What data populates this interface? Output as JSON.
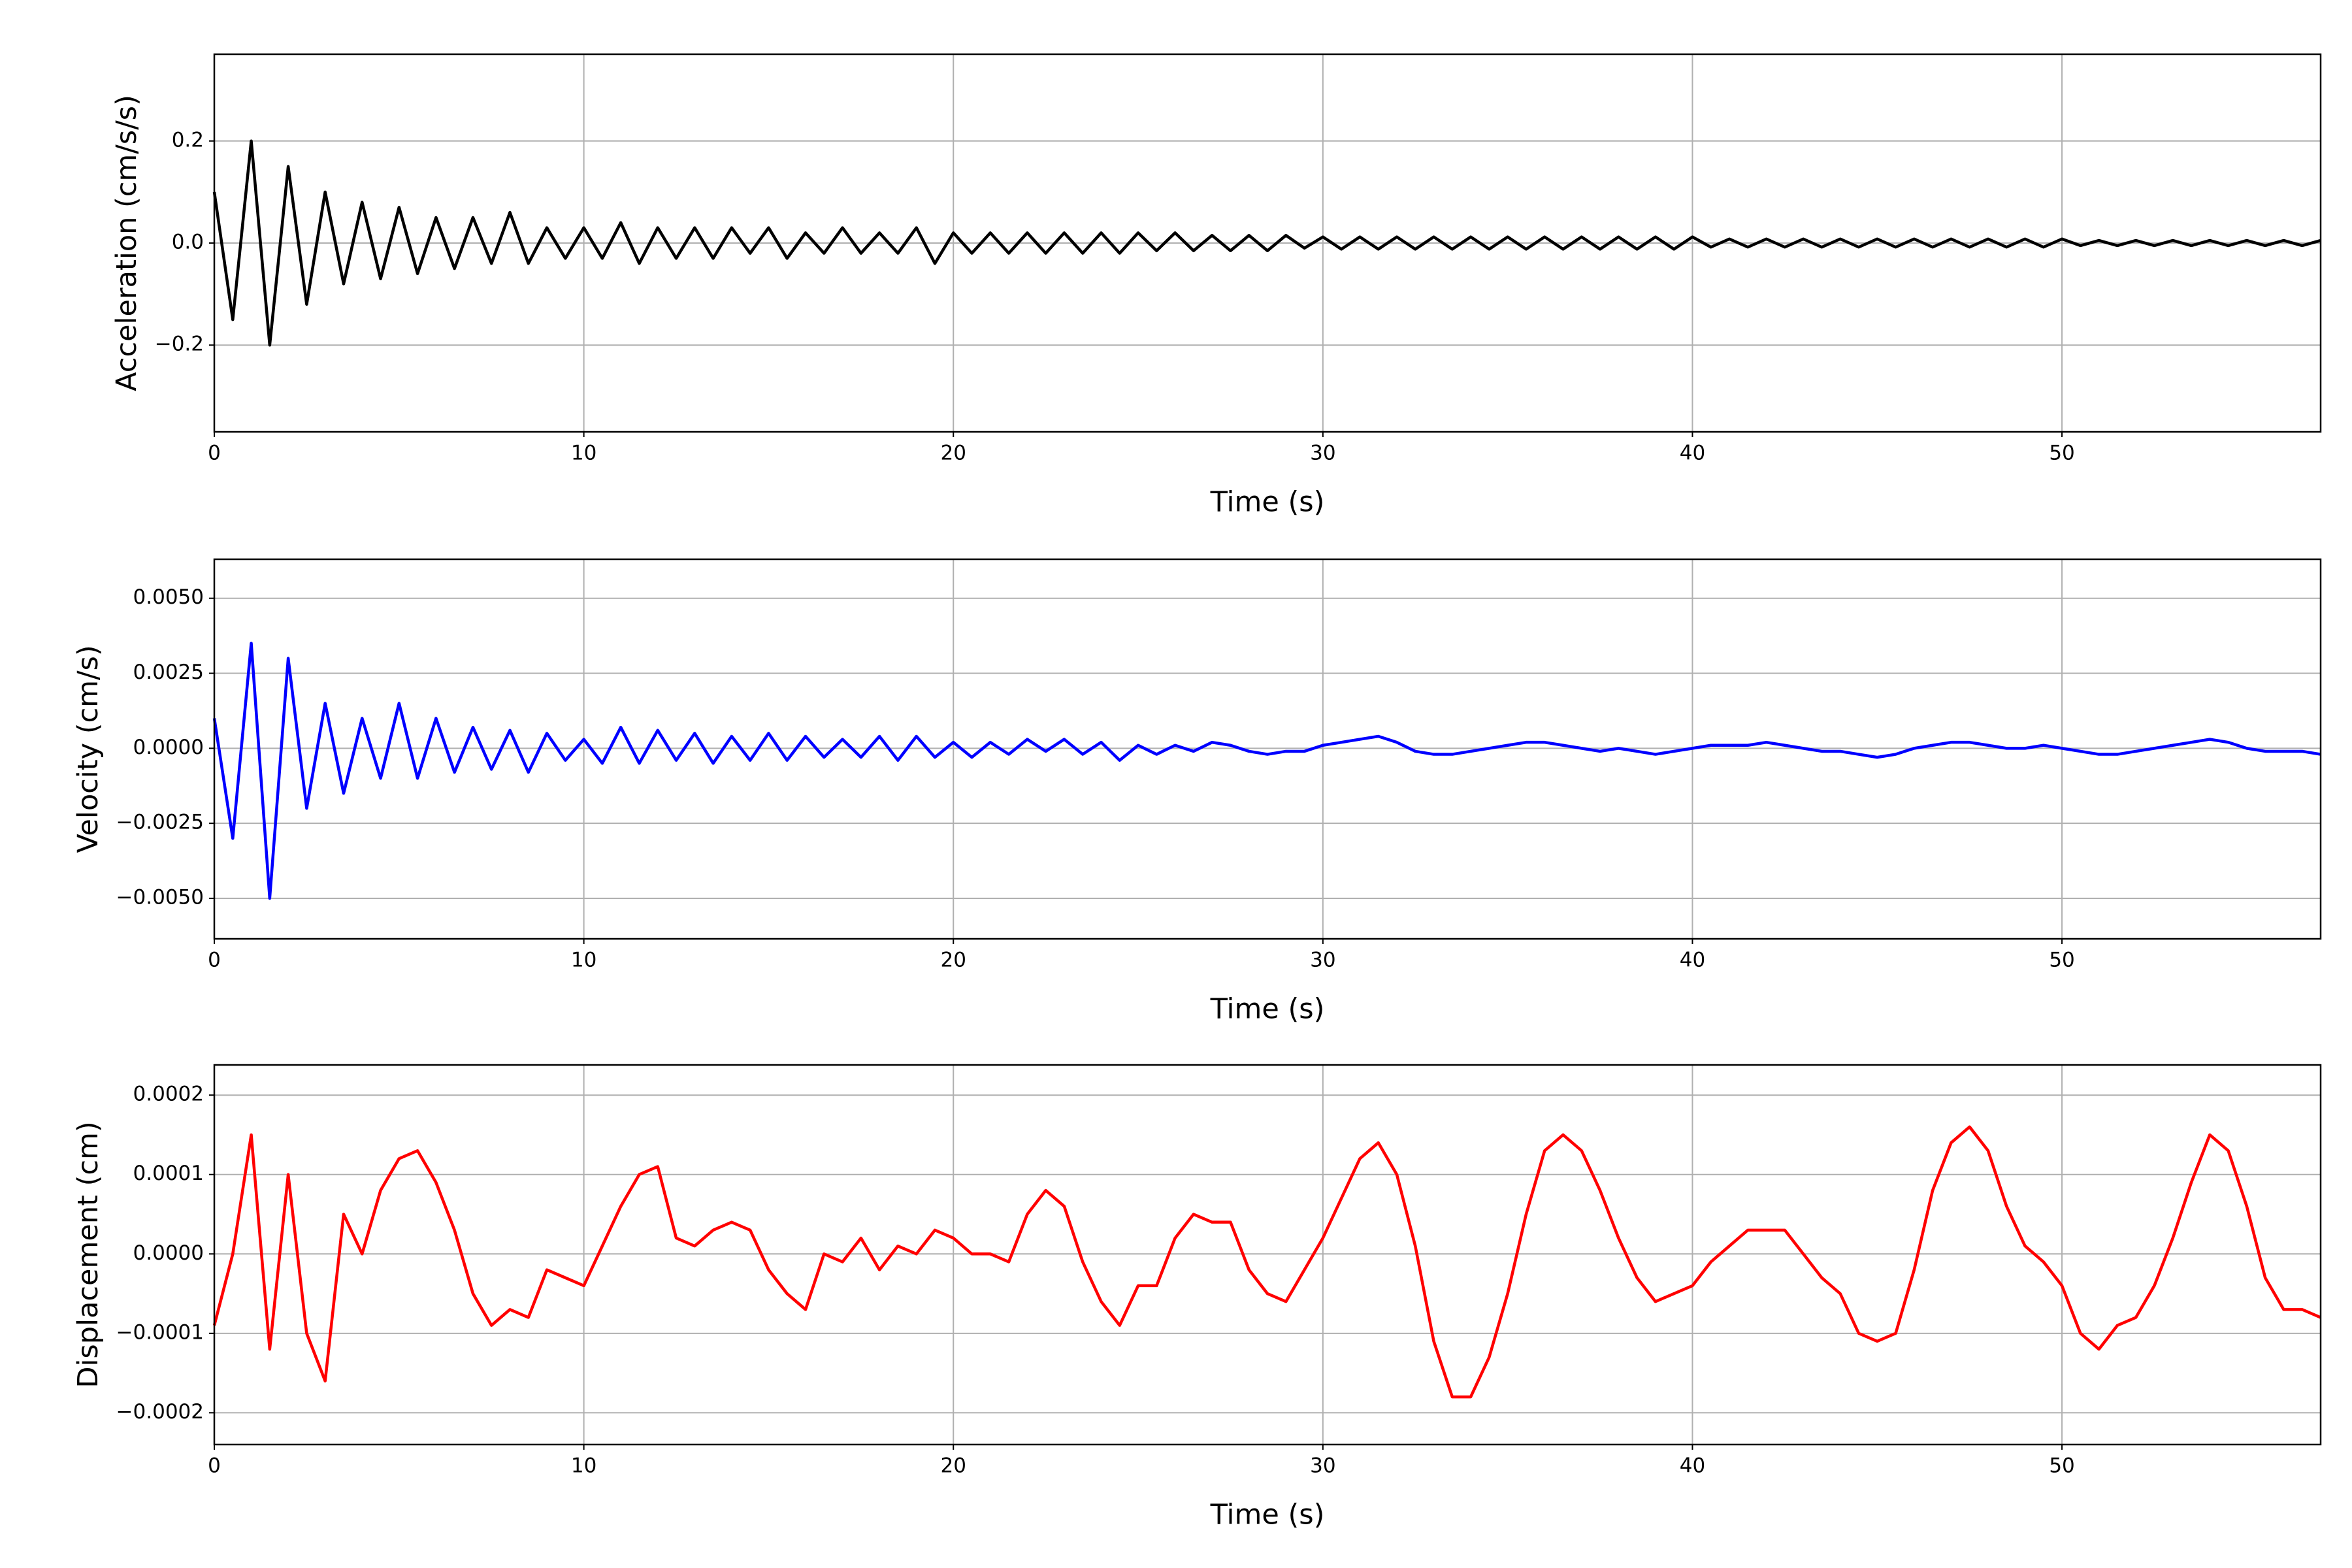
{
  "chart_data": [
    {
      "type": "line",
      "xlabel": "Time (s)",
      "ylabel": "Acceleration (cm/s/s)",
      "color": "#000000",
      "grid": true,
      "xlim": [
        0,
        57
      ],
      "xticks": [
        0,
        10,
        20,
        30,
        40,
        50
      ],
      "ylim": [
        -0.37,
        0.37
      ],
      "yticks": [
        {
          "value": -0.2,
          "label": "−0.2"
        },
        {
          "value": 0,
          "label": "0.0"
        },
        {
          "value": 0.2,
          "label": "0.2"
        }
      ],
      "x": [
        0,
        0.5,
        1,
        1.5,
        2,
        2.5,
        3,
        3.5,
        4,
        4.5,
        5,
        5.5,
        6,
        6.5,
        7,
        7.5,
        8,
        8.5,
        9,
        9.5,
        10,
        10.5,
        11,
        11.5,
        12,
        12.5,
        13,
        13.5,
        14,
        14.5,
        15,
        15.5,
        16,
        16.5,
        17,
        17.5,
        18,
        18.5,
        19,
        19.5,
        20,
        20.5,
        21,
        21.5,
        22,
        22.5,
        23,
        23.5,
        24,
        24.5,
        25,
        25.5,
        26,
        26.5,
        27,
        27.5,
        28,
        28.5,
        29,
        29.5,
        30,
        30.5,
        31,
        31.5,
        32,
        32.5,
        33,
        33.5,
        34,
        34.5,
        35,
        35.5,
        36,
        36.5,
        37,
        37.5,
        38,
        38.5,
        39,
        39.5,
        40,
        40.5,
        41,
        41.5,
        42,
        42.5,
        43,
        43.5,
        44,
        44.5,
        45,
        45.5,
        46,
        46.5,
        47,
        47.5,
        48,
        48.5,
        49,
        49.5,
        50,
        50.5,
        51,
        51.5,
        52,
        52.5,
        53,
        53.5,
        54,
        54.5,
        55,
        55.5,
        56,
        56.5,
        57
      ],
      "values": [
        0.1,
        -0.15,
        0.2,
        -0.2,
        0.15,
        -0.12,
        0.1,
        -0.08,
        0.08,
        -0.07,
        0.07,
        -0.06,
        0.05,
        -0.05,
        0.05,
        -0.04,
        0.06,
        -0.04,
        0.03,
        -0.03,
        0.03,
        -0.03,
        0.04,
        -0.04,
        0.03,
        -0.03,
        0.03,
        -0.03,
        0.03,
        -0.02,
        0.03,
        -0.03,
        0.02,
        -0.02,
        0.03,
        -0.02,
        0.02,
        -0.02,
        0.03,
        -0.04,
        0.02,
        -0.02,
        0.02,
        -0.02,
        0.02,
        -0.02,
        0.02,
        -0.02,
        0.02,
        -0.02,
        0.02,
        -0.015,
        0.02,
        -0.015,
        0.015,
        -0.015,
        0.015,
        -0.015,
        0.015,
        -0.01,
        0.012,
        -0.012,
        0.012,
        -0.012,
        0.012,
        -0.012,
        0.012,
        -0.012,
        0.012,
        -0.012,
        0.012,
        -0.012,
        0.012,
        -0.012,
        0.012,
        -0.012,
        0.012,
        -0.012,
        0.012,
        -0.012,
        0.012,
        -0.008,
        0.008,
        -0.008,
        0.008,
        -0.008,
        0.008,
        -0.008,
        0.008,
        -0.008,
        0.008,
        -0.008,
        0.008,
        -0.008,
        0.008,
        -0.008,
        0.008,
        -0.008,
        0.008,
        -0.008,
        0.008,
        -0.005,
        0.005,
        -0.005,
        0.005,
        -0.005,
        0.005,
        -0.005,
        0.005,
        -0.005,
        0.005,
        -0.005,
        0.005,
        -0.005,
        0.005
      ]
    },
    {
      "type": "line",
      "xlabel": "Time (s)",
      "ylabel": "Velocity (cm/s)",
      "color": "#0000ff",
      "grid": true,
      "xlim": [
        0,
        57
      ],
      "xticks": [
        0,
        10,
        20,
        30,
        40,
        50
      ],
      "ylim": [
        -0.00635,
        0.0063
      ],
      "yticks": [
        {
          "value": -0.005,
          "label": "−0.0050"
        },
        {
          "value": -0.0025,
          "label": "−0.0025"
        },
        {
          "value": 0,
          "label": "0.0000"
        },
        {
          "value": 0.0025,
          "label": "0.0025"
        },
        {
          "value": 0.005,
          "label": "0.0050"
        }
      ],
      "x": [
        0,
        0.5,
        1,
        1.5,
        2,
        2.5,
        3,
        3.5,
        4,
        4.5,
        5,
        5.5,
        6,
        6.5,
        7,
        7.5,
        8,
        8.5,
        9,
        9.5,
        10,
        10.5,
        11,
        11.5,
        12,
        12.5,
        13,
        13.5,
        14,
        14.5,
        15,
        15.5,
        16,
        16.5,
        17,
        17.5,
        18,
        18.5,
        19,
        19.5,
        20,
        20.5,
        21,
        21.5,
        22,
        22.5,
        23,
        23.5,
        24,
        24.5,
        25,
        25.5,
        26,
        26.5,
        27,
        27.5,
        28,
        28.5,
        29,
        29.5,
        30,
        30.5,
        31,
        31.5,
        32,
        32.5,
        33,
        33.5,
        34,
        34.5,
        35,
        35.5,
        36,
        36.5,
        37,
        37.5,
        38,
        38.5,
        39,
        39.5,
        40,
        40.5,
        41,
        41.5,
        42,
        42.5,
        43,
        43.5,
        44,
        44.5,
        45,
        45.5,
        46,
        46.5,
        47,
        47.5,
        48,
        48.5,
        49,
        49.5,
        50,
        50.5,
        51,
        51.5,
        52,
        52.5,
        53,
        53.5,
        54,
        54.5,
        55,
        55.5,
        56,
        56.5,
        57
      ],
      "values": [
        0.001,
        -0.003,
        0.0035,
        -0.005,
        0.003,
        -0.002,
        0.0015,
        -0.0015,
        0.001,
        -0.001,
        0.0015,
        -0.001,
        0.001,
        -0.0008,
        0.0007,
        -0.0007,
        0.0006,
        -0.0008,
        0.0005,
        -0.0004,
        0.0003,
        -0.0005,
        0.0007,
        -0.0005,
        0.0006,
        -0.0004,
        0.0005,
        -0.0005,
        0.0004,
        -0.0004,
        0.0005,
        -0.0004,
        0.0004,
        -0.0003,
        0.0003,
        -0.0003,
        0.0004,
        -0.0004,
        0.0004,
        -0.0003,
        0.0002,
        -0.0003,
        0.0002,
        -0.0002,
        0.0003,
        -0.0001,
        0.0003,
        -0.0002,
        0.0002,
        -0.0004,
        0.0001,
        -0.0002,
        0.0001,
        -0.0001,
        0.0002,
        0.0001,
        -0.0001,
        -0.0002,
        -0.0001,
        -0.0001,
        0.0001,
        0.0002,
        0.0003,
        0.0004,
        0.0002,
        -0.0001,
        -0.0002,
        -0.0002,
        -0.0001,
        0,
        0.0001,
        0.0002,
        0.0002,
        0.0001,
        0,
        -0.0001,
        0,
        -0.0001,
        -0.0002,
        -0.0001,
        0,
        0.0001,
        0.0001,
        0.0001,
        0.0002,
        0.0001,
        0,
        -0.0001,
        -0.0001,
        -0.0002,
        -0.0003,
        -0.0002,
        0,
        0.0001,
        0.0002,
        0.0002,
        0.0001,
        0,
        0,
        0.0001,
        0,
        -0.0001,
        -0.0002,
        -0.0002,
        -0.0001,
        0,
        0.0001,
        0.0002,
        0.0003,
        0.0002,
        0,
        -0.0001,
        -0.0001,
        -0.0001,
        -0.0002
      ]
    },
    {
      "type": "line",
      "xlabel": "Time (s)",
      "ylabel": "Displacement (cm)",
      "color": "#ff0000",
      "grid": true,
      "xlim": [
        0,
        57
      ],
      "xticks": [
        0,
        10,
        20,
        30,
        40,
        50
      ],
      "ylim": [
        -0.00024,
        0.000238
      ],
      "yticks": [
        {
          "value": -0.0002,
          "label": "−0.0002"
        },
        {
          "value": -0.0001,
          "label": "−0.0001"
        },
        {
          "value": 0,
          "label": "0.0000"
        },
        {
          "value": 0.0001,
          "label": "0.0001"
        },
        {
          "value": 0.0002,
          "label": "0.0002"
        }
      ],
      "x": [
        0,
        0.5,
        1,
        1.5,
        2,
        2.5,
        3,
        3.5,
        4,
        4.5,
        5,
        5.5,
        6,
        6.5,
        7,
        7.5,
        8,
        8.5,
        9,
        9.5,
        10,
        10.5,
        11,
        11.5,
        12,
        12.5,
        13,
        13.5,
        14,
        14.5,
        15,
        15.5,
        16,
        16.5,
        17,
        17.5,
        18,
        18.5,
        19,
        19.5,
        20,
        20.5,
        21,
        21.5,
        22,
        22.5,
        23,
        23.5,
        24,
        24.5,
        25,
        25.5,
        26,
        26.5,
        27,
        27.5,
        28,
        28.5,
        29,
        29.5,
        30,
        30.5,
        31,
        31.5,
        32,
        32.5,
        33,
        33.5,
        34,
        34.5,
        35,
        35.5,
        36,
        36.5,
        37,
        37.5,
        38,
        38.5,
        39,
        39.5,
        40,
        40.5,
        41,
        41.5,
        42,
        42.5,
        43,
        43.5,
        44,
        44.5,
        45,
        45.5,
        46,
        46.5,
        47,
        47.5,
        48,
        48.5,
        49,
        49.5,
        50,
        50.5,
        51,
        51.5,
        52,
        52.5,
        53,
        53.5,
        54,
        54.5,
        55,
        55.5,
        56,
        56.5,
        57
      ],
      "values": [
        -9e-05,
        0,
        0.00015,
        -0.00012,
        0.0001,
        -0.0001,
        -0.00016,
        5e-05,
        0,
        8e-05,
        0.00012,
        0.00013,
        9e-05,
        3e-05,
        -5e-05,
        -9e-05,
        -7e-05,
        -8e-05,
        -2e-05,
        -3e-05,
        -4e-05,
        1e-05,
        6e-05,
        0.0001,
        0.00011,
        2e-05,
        1e-05,
        3e-05,
        4e-05,
        3e-05,
        -2e-05,
        -5e-05,
        -7e-05,
        0,
        -1e-05,
        2e-05,
        -2e-05,
        1e-05,
        0,
        3e-05,
        2e-05,
        0,
        0,
        -1e-05,
        5e-05,
        8e-05,
        6e-05,
        -1e-05,
        -6e-05,
        -9e-05,
        -4e-05,
        -4e-05,
        2e-05,
        5e-05,
        4e-05,
        4e-05,
        -2e-05,
        -5e-05,
        -6e-05,
        -2e-05,
        2e-05,
        7e-05,
        0.00012,
        0.00014,
        0.0001,
        1e-05,
        -0.00011,
        -0.00018,
        -0.00018,
        -0.00013,
        -5e-05,
        5e-05,
        0.00013,
        0.00015,
        0.00013,
        8e-05,
        2e-05,
        -3e-05,
        -6e-05,
        -5e-05,
        -4e-05,
        -1e-05,
        1e-05,
        3e-05,
        3e-05,
        3e-05,
        0,
        -3e-05,
        -5e-05,
        -0.0001,
        -0.00011,
        -0.0001,
        -2e-05,
        8e-05,
        0.00014,
        0.00016,
        0.00013,
        6e-05,
        1e-05,
        -1e-05,
        -4e-05,
        -0.0001,
        -0.00012,
        -9e-05,
        -8e-05,
        -4e-05,
        2e-05,
        9e-05,
        0.00015,
        0.00013,
        6e-05,
        -3e-05,
        -7e-05,
        -7e-05,
        -8e-05
      ]
    }
  ]
}
